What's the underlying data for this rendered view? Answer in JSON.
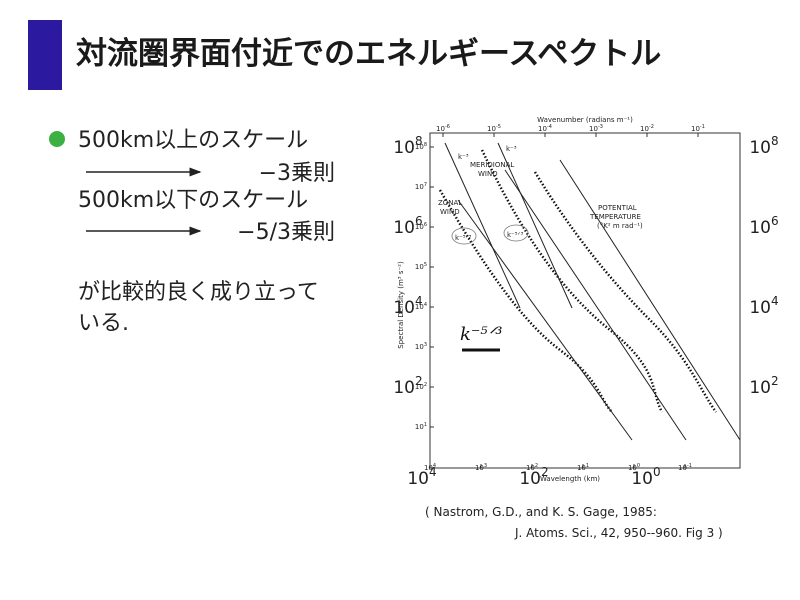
{
  "header": {
    "title": "対流圏界面付近でのエネルギースペクトル"
  },
  "body": {
    "lines": [
      "500km以上のスケール",
      "−3乗則",
      "500km以下のスケール",
      "−5/3乗則",
      "が比較的良く成り立って",
      "いる."
    ]
  },
  "figure": {
    "top_axis_title": "Wavenumber (radians m⁻¹)",
    "top_ticks": [
      {
        "base": "10",
        "exp": "-6"
      },
      {
        "base": "10",
        "exp": "-5"
      },
      {
        "base": "10",
        "exp": "-4"
      },
      {
        "base": "10",
        "exp": "-3"
      },
      {
        "base": "10",
        "exp": "-2"
      },
      {
        "base": "10",
        "exp": "-1"
      }
    ],
    "left_ticks": [
      {
        "base": "10",
        "exp": "8"
      },
      {
        "base": "10",
        "exp": "7"
      },
      {
        "base": "10",
        "exp": "6"
      },
      {
        "base": "10",
        "exp": "5"
      },
      {
        "base": "10",
        "exp": "4"
      },
      {
        "base": "10",
        "exp": "3"
      },
      {
        "base": "10",
        "exp": "2"
      },
      {
        "base": "10",
        "exp": "1"
      }
    ],
    "bottom_ticks": [
      {
        "base": "10",
        "exp": "4"
      },
      {
        "base": "10",
        "exp": "3"
      },
      {
        "base": "10",
        "exp": "2"
      },
      {
        "base": "10",
        "exp": "1"
      },
      {
        "base": "10",
        "exp": "0"
      },
      {
        "base": "10",
        "exp": "-1"
      }
    ],
    "y_axis_title": "Spectral Density (m³ s⁻²)",
    "x_axis_title": "Wavelength (km)",
    "annotations": [
      "MERIDIONAL",
      "WIND",
      "ZONAL",
      "WIND",
      "POTENTIAL",
      "TEMPERATURE",
      "(°K² m rad⁻¹)"
    ],
    "slope_labels": [
      "k⁻³",
      "k⁻³",
      "k⁻⁵ᐟ³",
      "k⁻⁵ᐟ³"
    ],
    "handwritten": "k⁻⁵ᐟ³",
    "overlay_left": [
      {
        "base": "10",
        "exp": "8"
      },
      {
        "base": "10",
        "exp": "6"
      },
      {
        "base": "10",
        "exp": "4"
      },
      {
        "base": "10",
        "exp": "2"
      }
    ],
    "overlay_right": [
      {
        "base": "10",
        "exp": "8"
      },
      {
        "base": "10",
        "exp": "6"
      },
      {
        "base": "10",
        "exp": "4"
      },
      {
        "base": "10",
        "exp": "2"
      }
    ],
    "overlay_bottom": [
      {
        "base": "10",
        "exp": "4"
      },
      {
        "base": "10",
        "exp": "2"
      },
      {
        "base": "10",
        "exp": "0"
      }
    ]
  },
  "caption": [
    "( Nastrom, G.D., and K. S. Gage, 1985:",
    "J. Atoms. Sci., 42, 950--960. Fig 3 )"
  ]
}
